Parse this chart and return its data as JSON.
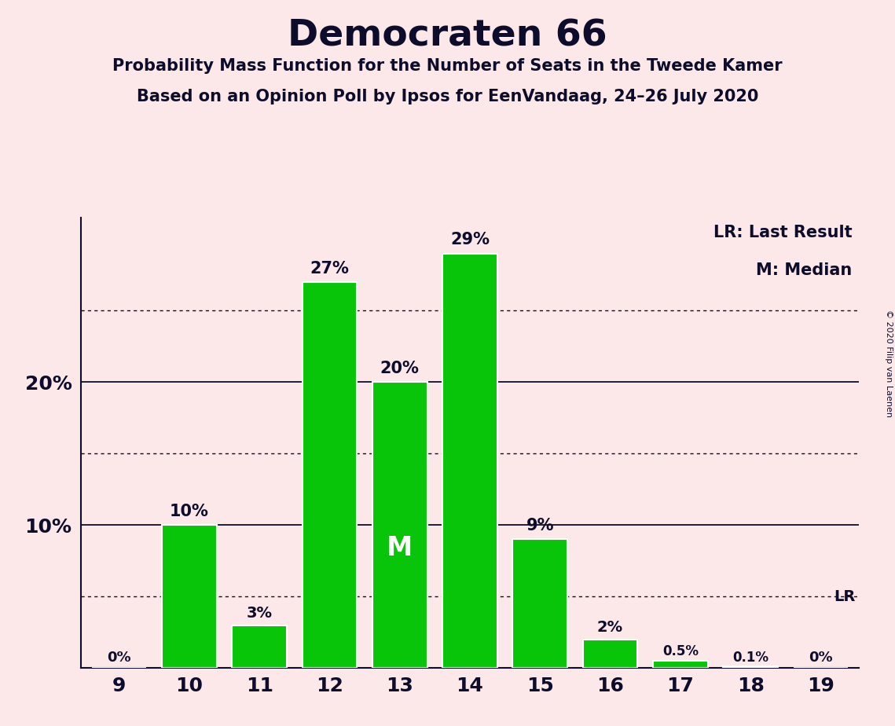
{
  "title": "Democraten 66",
  "subtitle1": "Probability Mass Function for the Number of Seats in the Tweede Kamer",
  "subtitle2": "Based on an Opinion Poll by Ipsos for EenVandaag, 24–26 July 2020",
  "copyright": "© 2020 Filip van Laenen",
  "seats": [
    9,
    10,
    11,
    12,
    13,
    14,
    15,
    16,
    17,
    18,
    19
  ],
  "values": [
    0.0,
    0.1,
    0.03,
    0.27,
    0.2,
    0.29,
    0.09,
    0.02,
    0.005,
    0.001,
    0.0
  ],
  "labels": [
    "0%",
    "10%",
    "3%",
    "27%",
    "20%",
    "29%",
    "9%",
    "2%",
    "0.5%",
    "0.1%",
    "0%"
  ],
  "bar_color": "#09c509",
  "background_color": "#fce8e8",
  "text_color": "#0d0d2b",
  "dotted_lines": [
    0.05,
    0.15,
    0.25
  ],
  "solid_lines": [
    0.1,
    0.2
  ],
  "median_seat": 13,
  "lr_seat": 19,
  "legend_lr": "LR: Last Result",
  "legend_m": "M: Median",
  "ylim_max": 0.315,
  "xlim_min": 8.45,
  "xlim_max": 19.55
}
